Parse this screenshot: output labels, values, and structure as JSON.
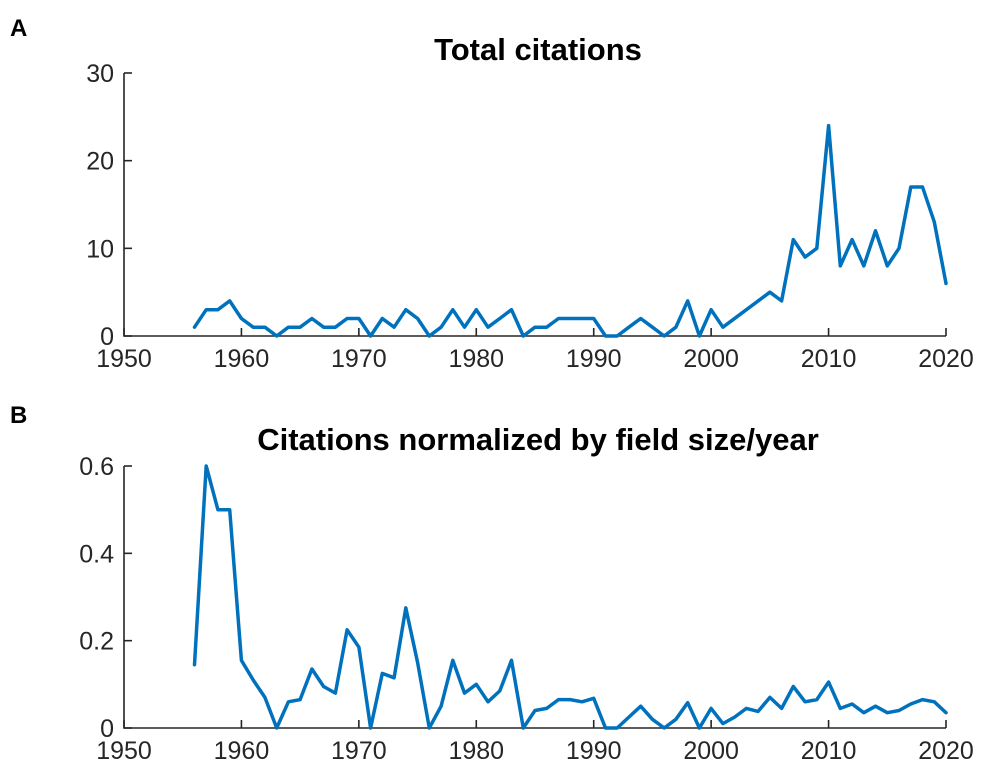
{
  "chart_data": [
    {
      "panel": "A",
      "type": "line",
      "title": "Total citations",
      "xlabel": "",
      "ylabel": "",
      "xlim": [
        1950,
        2020
      ],
      "ylim": [
        0,
        30
      ],
      "xticks": [
        "1950",
        "1960",
        "1970",
        "1980",
        "1990",
        "2000",
        "2010",
        "2020"
      ],
      "yticks": [
        "0",
        "10",
        "20",
        "30"
      ],
      "grid": false,
      "series": [
        {
          "color": "#0072BD",
          "x": [
            1956,
            1957,
            1958,
            1959,
            1960,
            1961,
            1962,
            1963,
            1964,
            1965,
            1966,
            1967,
            1968,
            1969,
            1970,
            1971,
            1972,
            1973,
            1974,
            1975,
            1976,
            1977,
            1978,
            1979,
            1980,
            1981,
            1982,
            1983,
            1984,
            1985,
            1986,
            1987,
            1988,
            1989,
            1990,
            1991,
            1992,
            1993,
            1994,
            1995,
            1996,
            1997,
            1998,
            1999,
            2000,
            2001,
            2005,
            2006,
            2007,
            2008,
            2009,
            2010,
            2011,
            2012,
            2013,
            2014,
            2015,
            2016,
            2017,
            2018,
            2019,
            2020
          ],
          "y": [
            1,
            3,
            3,
            4,
            2,
            1,
            1,
            0,
            1,
            1,
            2,
            1,
            1,
            2,
            2,
            0,
            2,
            1,
            3,
            2,
            0,
            1,
            3,
            1,
            3,
            1,
            2,
            3,
            0,
            1,
            1,
            2,
            2,
            2,
            2,
            0,
            0,
            1,
            2,
            1,
            0,
            1,
            4,
            0,
            3,
            1,
            5,
            4,
            11,
            9,
            10,
            24,
            8,
            11,
            8,
            12,
            8,
            10,
            17,
            17,
            13,
            6
          ]
        }
      ]
    },
    {
      "panel": "B",
      "type": "line",
      "title": "Citations normalized by field size/year",
      "xlabel": "",
      "ylabel": "",
      "xlim": [
        1950,
        2020
      ],
      "ylim": [
        0,
        0.6
      ],
      "xticks": [
        "1950",
        "1960",
        "1970",
        "1980",
        "1990",
        "2000",
        "2010",
        "2020"
      ],
      "yticks": [
        "0",
        "0.2",
        "0.4",
        "0.6"
      ],
      "grid": false,
      "series": [
        {
          "color": "#0072BD",
          "x": [
            1956,
            1957,
            1958,
            1959,
            1960,
            1961,
            1962,
            1963,
            1964,
            1965,
            1966,
            1967,
            1968,
            1969,
            1970,
            1971,
            1972,
            1973,
            1974,
            1975,
            1976,
            1977,
            1978,
            1979,
            1980,
            1981,
            1982,
            1983,
            1984,
            1985,
            1986,
            1987,
            1988,
            1989,
            1990,
            1991,
            1992,
            1993,
            1994,
            1995,
            1996,
            1997,
            1998,
            1999,
            2000,
            2001,
            2002,
            2003,
            2004,
            2005,
            2006,
            2007,
            2008,
            2009,
            2010,
            2011,
            2012,
            2013,
            2014,
            2015,
            2016,
            2017,
            2018,
            2019,
            2020
          ],
          "y": [
            0.145,
            0.6,
            0.5,
            0.5,
            0.155,
            0.11,
            0.07,
            0.0,
            0.06,
            0.065,
            0.135,
            0.095,
            0.08,
            0.225,
            0.185,
            0.0,
            0.125,
            0.115,
            0.275,
            0.15,
            0.0,
            0.05,
            0.155,
            0.08,
            0.1,
            0.06,
            0.085,
            0.155,
            0.0,
            0.04,
            0.045,
            0.065,
            0.065,
            0.06,
            0.068,
            0.0,
            0.0,
            0.025,
            0.05,
            0.02,
            0.0,
            0.02,
            0.058,
            0.0,
            0.045,
            0.01,
            0.025,
            0.045,
            0.038,
            0.07,
            0.045,
            0.095,
            0.06,
            0.065,
            0.105,
            0.045,
            0.055,
            0.035,
            0.05,
            0.035,
            0.04,
            0.055,
            0.065,
            0.06,
            0.035
          ]
        }
      ]
    }
  ]
}
